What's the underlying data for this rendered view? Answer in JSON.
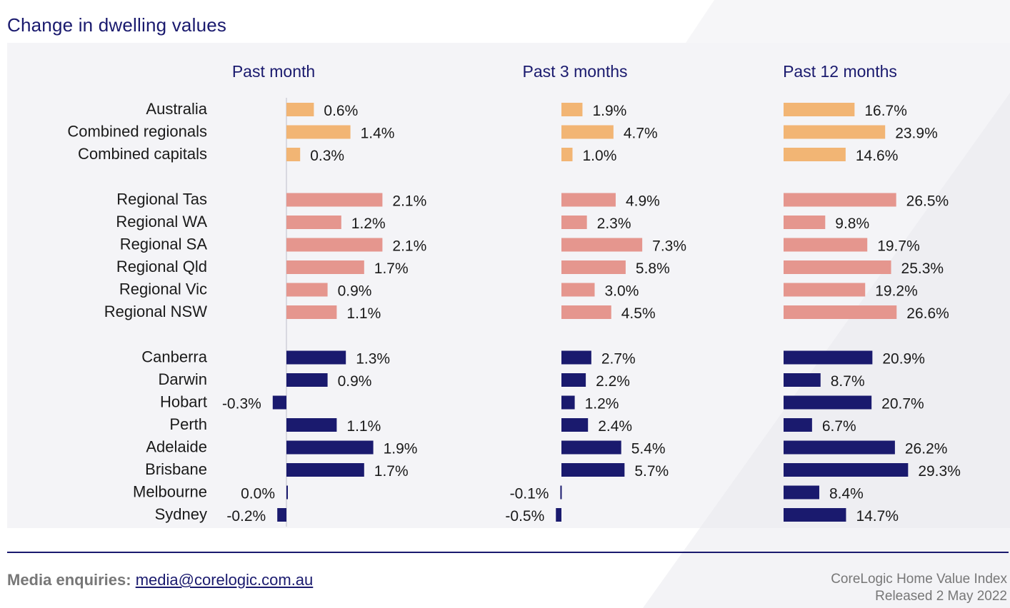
{
  "title": "Change in dwelling values",
  "colors": {
    "group1": "#f2b574",
    "group2": "#e5968e",
    "group3": "#1a1a6e",
    "text": "#1a1a1a",
    "header": "#1a1a6e"
  },
  "chart_data": {
    "type": "bar",
    "orientation": "horizontal",
    "categories": [
      "Australia",
      "Combined regionals",
      "Combined capitals",
      "Regional Tas",
      "Regional WA",
      "Regional SA",
      "Regional Qld",
      "Regional Vic",
      "Regional NSW",
      "Canberra",
      "Darwin",
      "Hobart",
      "Perth",
      "Adelaide",
      "Brisbane",
      "Melbourne",
      "Sydney"
    ],
    "groups": [
      1,
      1,
      1,
      2,
      2,
      2,
      2,
      2,
      2,
      3,
      3,
      3,
      3,
      3,
      3,
      3,
      3
    ],
    "series": [
      {
        "name": "Past month",
        "values": [
          0.6,
          1.4,
          0.3,
          2.1,
          1.2,
          2.1,
          1.7,
          0.9,
          1.1,
          1.3,
          0.9,
          -0.3,
          1.1,
          1.9,
          1.7,
          0.0,
          -0.2
        ],
        "labels": [
          "0.6%",
          "1.4%",
          "0.3%",
          "2.1%",
          "1.2%",
          "2.1%",
          "1.7%",
          "0.9%",
          "1.1%",
          "1.3%",
          "0.9%",
          "-0.3%",
          "1.1%",
          "1.9%",
          "1.7%",
          "0.0%",
          "-0.2%"
        ]
      },
      {
        "name": "Past 3 months",
        "values": [
          1.9,
          4.7,
          1.0,
          4.9,
          2.3,
          7.3,
          5.8,
          3.0,
          4.5,
          2.7,
          2.2,
          1.2,
          2.4,
          5.4,
          5.7,
          -0.1,
          -0.5
        ],
        "labels": [
          "1.9%",
          "4.7%",
          "1.0%",
          "4.9%",
          "2.3%",
          "7.3%",
          "5.8%",
          "3.0%",
          "4.5%",
          "2.7%",
          "2.2%",
          "1.2%",
          "2.4%",
          "5.4%",
          "5.7%",
          "-0.1%",
          "-0.5%"
        ]
      },
      {
        "name": "Past 12 months",
        "values": [
          16.7,
          23.9,
          14.6,
          26.5,
          9.8,
          19.7,
          25.3,
          19.2,
          26.6,
          20.9,
          8.7,
          20.7,
          6.7,
          26.2,
          29.3,
          8.4,
          14.7
        ],
        "labels": [
          "16.7%",
          "23.9%",
          "14.6%",
          "26.5%",
          "9.8%",
          "19.7%",
          "25.3%",
          "19.2%",
          "26.6%",
          "20.9%",
          "8.7%",
          "20.7%",
          "6.7%",
          "26.2%",
          "29.3%",
          "8.4%",
          "14.7%"
        ]
      }
    ]
  },
  "footer": {
    "media_label": "Media enquiries:",
    "media_email": "media@corelogic.com.au",
    "index_name": "CoreLogic Home Value Index",
    "release": "Released 2 May 2022"
  }
}
